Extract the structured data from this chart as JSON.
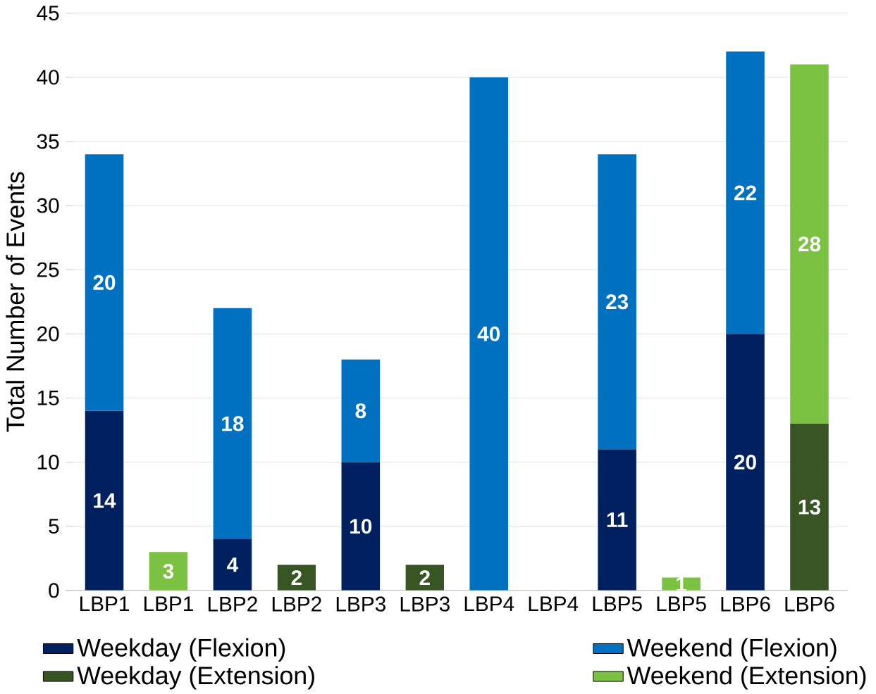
{
  "chart_data": {
    "type": "bar",
    "stacked": true,
    "ylabel": "Total Number of Events",
    "categories": [
      "LBP1",
      "LBP1",
      "LBP2",
      "LBP2",
      "LBP3",
      "LBP3",
      "LBP4",
      "LBP4",
      "LBP5",
      "LBP5",
      "LBP6",
      "LBP6"
    ],
    "series": [
      {
        "name": "Weekday (Flexion)",
        "color": "#002060",
        "values": [
          14,
          null,
          4,
          null,
          10,
          null,
          null,
          null,
          11,
          null,
          20,
          null
        ]
      },
      {
        "name": "Weekend (Flexion)",
        "color": "#0070c0",
        "values": [
          20,
          null,
          18,
          null,
          8,
          null,
          40,
          null,
          23,
          null,
          22,
          null
        ]
      },
      {
        "name": "Weekday (Extension)",
        "color": "#375623",
        "values": [
          null,
          null,
          null,
          2,
          null,
          2,
          null,
          null,
          null,
          null,
          null,
          13
        ]
      },
      {
        "name": "Weekend (Extension)",
        "color": "#7cc242",
        "values": [
          null,
          3,
          null,
          null,
          null,
          null,
          null,
          null,
          null,
          1,
          null,
          28
        ]
      }
    ],
    "ylim": [
      0,
      45
    ],
    "yticks": [
      0,
      5,
      10,
      15,
      20,
      25,
      30,
      35,
      40,
      45
    ],
    "grid": "y",
    "legend": "bottom",
    "data_labels": true
  }
}
